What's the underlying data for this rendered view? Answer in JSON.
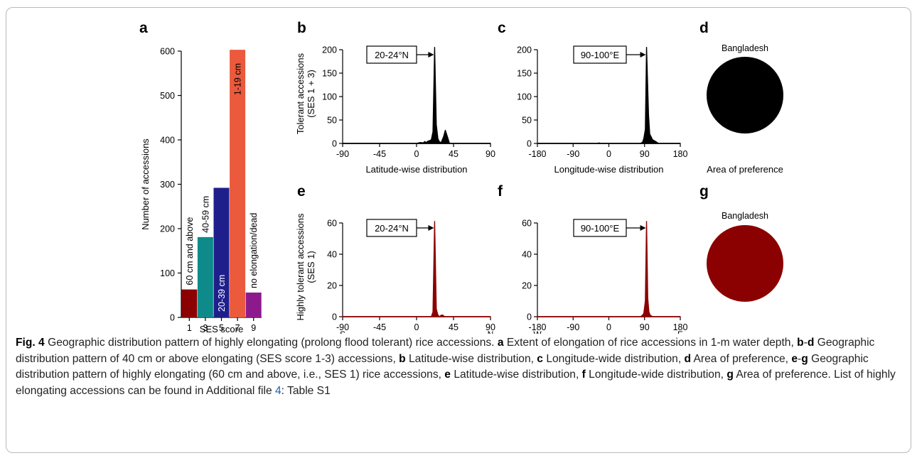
{
  "figure": {
    "caption_label": "Fig. 4",
    "caption": [
      {
        "t": " Geographic distribution pattern of highly elongating (prolong flood tolerant) rice accessions. "
      },
      {
        "b": "a"
      },
      {
        "t": " Extent of elongation of rice accessions in 1-m water depth, "
      },
      {
        "b": "b"
      },
      {
        "t": "-"
      },
      {
        "b": "d"
      },
      {
        "t": " Geographic distribution pattern of 40 cm or above elongating (SES score 1-3) accessions, "
      },
      {
        "b": "b"
      },
      {
        "t": " Latitude-wise distribution, "
      },
      {
        "b": "c"
      },
      {
        "t": " Longitude-wide distribution, "
      },
      {
        "b": "d"
      },
      {
        "t": " Area of preference, "
      },
      {
        "b": "e"
      },
      {
        "t": "-"
      },
      {
        "b": "g"
      },
      {
        "t": " Geographic distribution pattern of highly elongating (60 cm and above, i.e., SES 1) rice accessions, "
      },
      {
        "b": "e"
      },
      {
        "t": " Latitude-wise distribution, "
      },
      {
        "b": "f"
      },
      {
        "t": " Longitude-wide distribution, "
      },
      {
        "b": "g"
      },
      {
        "t": " Area of preference. List of highly elongating accessions can be found in Additional file "
      },
      {
        "link": "4"
      },
      {
        "t": ": Table S1"
      }
    ]
  },
  "colors": {
    "dark_red": "#8b0000",
    "teal": "#0e8a8a",
    "navy": "#1f1f8c",
    "orange_red": "#eb5a3c",
    "purple": "#8d1a8d",
    "black": "#000000",
    "frame": "#b9b9b9"
  },
  "chart_data": [
    {
      "panel": "a",
      "type": "bar",
      "xlabel": "SES score",
      "ylabel": "Number of accessions",
      "ylim": [
        0,
        600
      ],
      "yticks": [
        0,
        100,
        200,
        300,
        400,
        500,
        600
      ],
      "categories": [
        "1",
        "3",
        "5",
        "7",
        "9"
      ],
      "values": [
        63,
        181,
        292,
        603,
        56
      ],
      "bar_labels": [
        "60 cm and above",
        "40-59 cm",
        "20-39 cm",
        "1-19 cm",
        "no elongation/dead"
      ],
      "bar_colors": [
        "#8b0000",
        "#0e8a8a",
        "#1f1f8c",
        "#eb5a3c",
        "#8d1a8d"
      ]
    },
    {
      "panel": "b",
      "type": "area",
      "xlabel": "Latitude-wise distribution",
      "ylabel": "Tolerant accessions",
      "ylabel2": "(SES 1 + 3)",
      "xlim": [
        -90,
        90
      ],
      "ylim": [
        0,
        200
      ],
      "xticks": [
        -90,
        -45,
        0,
        45,
        90
      ],
      "yticks": [
        0,
        50,
        100,
        150,
        200
      ],
      "x": [
        -90,
        0,
        2,
        5,
        8,
        10,
        12,
        14,
        16,
        18,
        20,
        22,
        24,
        26,
        28,
        30,
        33,
        35,
        38,
        40,
        90
      ],
      "y": [
        0,
        0,
        1,
        2,
        1,
        4,
        2,
        5,
        6,
        8,
        25,
        205,
        40,
        10,
        3,
        2,
        15,
        28,
        12,
        0,
        0
      ],
      "callout": "20-24°N",
      "color": "#000000"
    },
    {
      "panel": "c",
      "type": "area",
      "xlabel": "Longitude-wise distribution",
      "xlim": [
        -180,
        180
      ],
      "ylim": [
        0,
        200
      ],
      "xticks": [
        -180,
        -90,
        0,
        90,
        180
      ],
      "yticks": [
        0,
        50,
        100,
        150,
        200
      ],
      "x": [
        -180,
        -30,
        -25,
        -20,
        80,
        85,
        88,
        92,
        95,
        100,
        103,
        106,
        110,
        120,
        125,
        180
      ],
      "y": [
        0,
        0,
        1,
        0,
        0,
        3,
        10,
        30,
        205,
        60,
        20,
        15,
        8,
        3,
        0,
        0
      ],
      "callout": "90-100°E",
      "color": "#000000"
    },
    {
      "panel": "d",
      "type": "pie",
      "title": "Bangladesh",
      "xlabel": "Area of preference",
      "categories": [
        "Bangladesh"
      ],
      "values": [
        100
      ],
      "color": "#000000"
    },
    {
      "panel": "e",
      "type": "area",
      "xlabel": "Latitude-wise distribution",
      "ylabel": "Highly tolerant accessions",
      "ylabel2": "(SES 1)",
      "xlim": [
        -90,
        90
      ],
      "ylim": [
        0,
        60
      ],
      "xticks": [
        -90,
        -45,
        0,
        45,
        90
      ],
      "yticks": [
        0,
        20,
        40,
        60
      ],
      "xtick_sublabels": [
        "S",
        "",
        "",
        "",
        "N"
      ],
      "x": [
        -90,
        18,
        20,
        22,
        24,
        26,
        28,
        30,
        32,
        34,
        90
      ],
      "y": [
        0,
        0,
        3,
        61,
        5,
        1,
        0,
        1,
        1,
        0,
        0
      ],
      "callout": "20-24°N",
      "color": "#8b0000"
    },
    {
      "panel": "f",
      "type": "area",
      "xlabel": "Longitude-wise distribution",
      "xlim": [
        -180,
        180
      ],
      "ylim": [
        0,
        60
      ],
      "xticks": [
        -180,
        -90,
        0,
        90,
        180
      ],
      "yticks": [
        0,
        20,
        40,
        60
      ],
      "xtick_sublabels": [
        "W",
        "",
        "",
        "",
        "E"
      ],
      "x": [
        -180,
        80,
        85,
        88,
        92,
        95,
        98,
        101,
        104,
        110,
        180
      ],
      "y": [
        0,
        0,
        1,
        2,
        10,
        61,
        12,
        3,
        1,
        0,
        0
      ],
      "callout": "90-100°E",
      "color": "#8b0000"
    },
    {
      "panel": "g",
      "type": "pie",
      "title": "Bangladesh",
      "xlabel": "Area of preference",
      "categories": [
        "Bangladesh"
      ],
      "values": [
        100
      ],
      "color": "#8b0000"
    }
  ]
}
